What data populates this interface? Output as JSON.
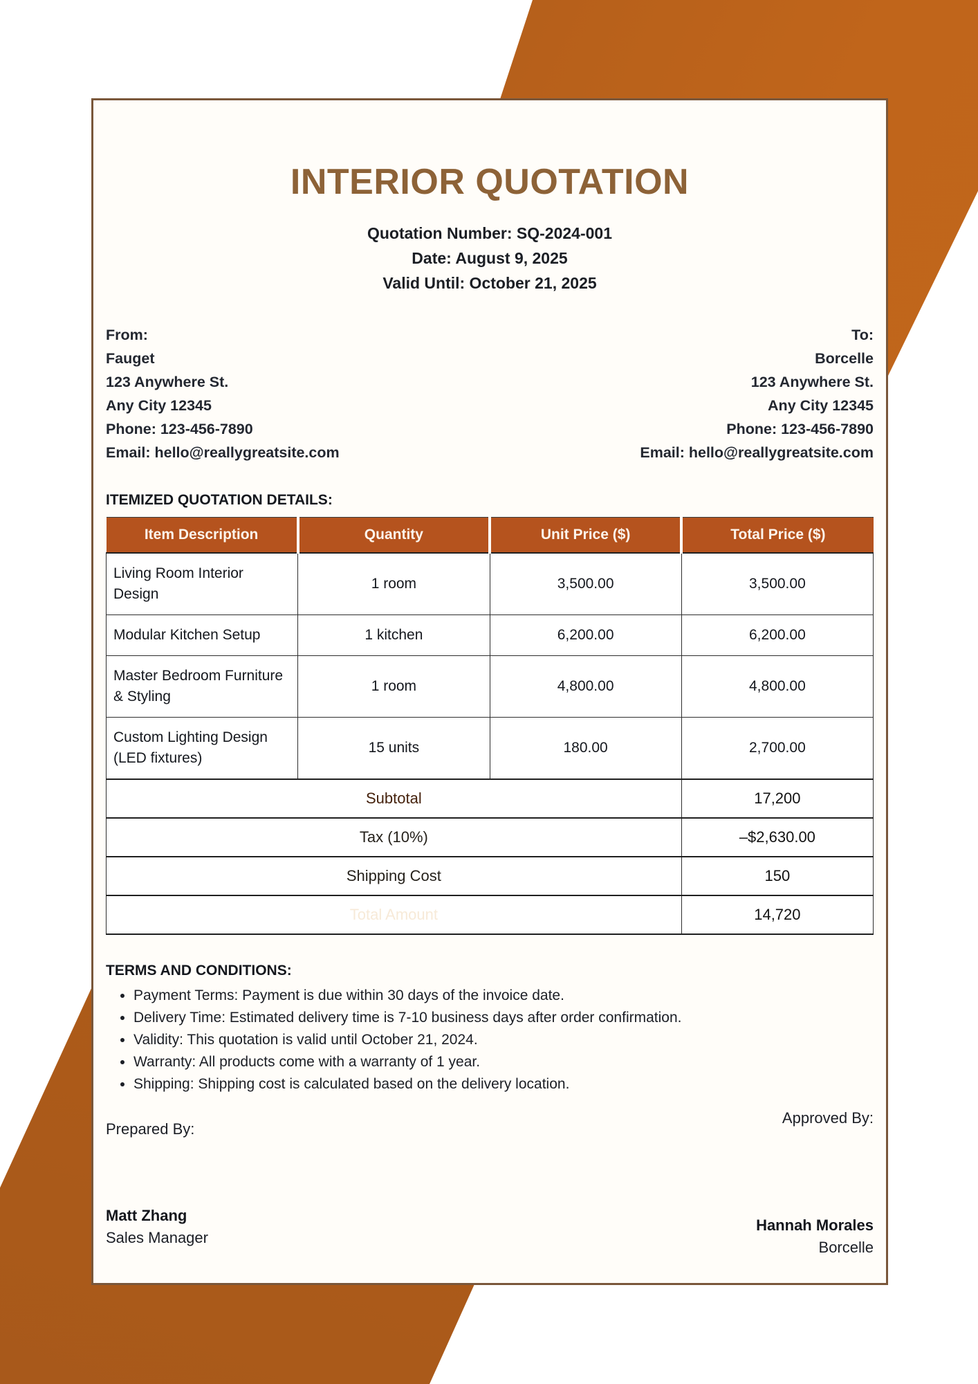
{
  "title": "INTERIOR QUOTATION",
  "meta": {
    "quotation_number": "Quotation Number: SQ-2024-001",
    "date": "Date: August 9, 2025",
    "valid_until": "Valid Until: October 21, 2025"
  },
  "from": {
    "label": "From:",
    "company": "Fauget",
    "street": "123 Anywhere St.",
    "city": "Any City 12345",
    "phone": "Phone: 123-456-7890",
    "email": "Email: hello@reallygreatsite.com"
  },
  "to": {
    "label": "To:",
    "company": "Borcelle",
    "street": "123 Anywhere St.",
    "city": "Any City 12345",
    "phone": "Phone: 123-456-7890",
    "email": "Email: hello@reallygreatsite.com"
  },
  "table": {
    "section_heading": "ITEMIZED QUOTATION DETAILS:",
    "headers": [
      "Item Description",
      "Quantity",
      "Unit Price ($)",
      "Total Price ($)"
    ],
    "rows": [
      {
        "desc": "Living Room Interior Design",
        "qty": "1 room",
        "unit": "3,500.00",
        "total": "3,500.00"
      },
      {
        "desc": "Modular Kitchen Setup",
        "qty": "1 kitchen",
        "unit": "6,200.00",
        "total": "6,200.00"
      },
      {
        "desc": "Master Bedroom Furniture & Styling",
        "qty": "1 room",
        "unit": "4,800.00",
        "total": "4,800.00"
      },
      {
        "desc": "Custom Lighting Design (LED fixtures)",
        "qty": "15 units",
        "unit": "180.00",
        "total": "2,700.00"
      }
    ],
    "summary": [
      {
        "label": "Subtotal",
        "value": "17,200"
      },
      {
        "label": "Tax (10%)",
        "value": "–$2,630.00"
      },
      {
        "label": "Shipping Cost",
        "value": "150"
      },
      {
        "label": "Total Amount",
        "value": "14,720"
      }
    ]
  },
  "terms": {
    "heading": "TERMS AND CONDITIONS:",
    "items": [
      "Payment Terms: Payment is due within 30 days of the invoice date.",
      "Delivery Time: Estimated delivery time is 7-10 business days after order confirmation.",
      "Validity: This quotation is valid until October 21, 2024.",
      "Warranty: All products come with a warranty of 1 year.",
      "Shipping: Shipping cost is calculated based on the delivery location."
    ]
  },
  "signatures": {
    "prepared_label": "Prepared By:",
    "approved_label": "Approved By:",
    "prepared_name": "Matt Zhang",
    "prepared_role": "Sales Manager",
    "approved_name": "Hannah Morales",
    "approved_company": "Borcelle"
  },
  "colors": {
    "accent_band": "#bc6118",
    "table_header_bg": "#b5531e",
    "subtotal_bg": "#d2691e",
    "tax_shipping_bg": "#ebd8c2",
    "total_bg": "#a94e1c",
    "title_text": "#8d6237",
    "page_border": "#7a573a"
  }
}
